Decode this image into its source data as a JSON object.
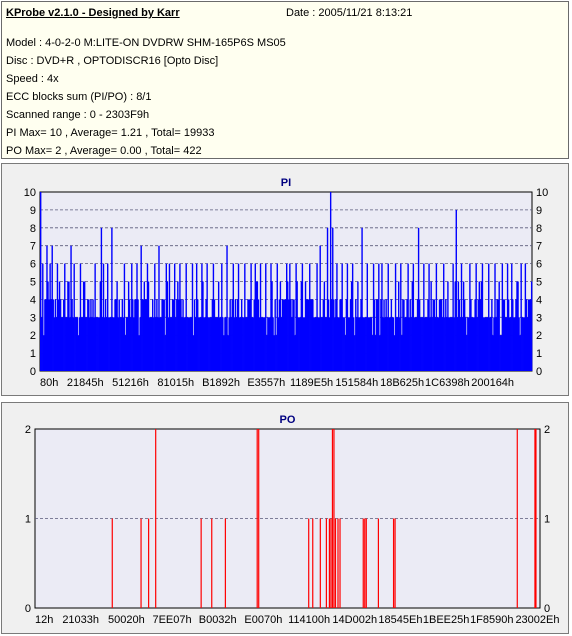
{
  "header": {
    "title": "KProbe v2.1.0 - Designed by Karr",
    "date": "Date : 2005/11/21 8:13:21",
    "model": "Model : 4-0-2-0 M:LITE-ON DVDRW SHM-165P6S MS05",
    "disc": "Disc : DVD+R , OPTODISCR16 [Opto Disc]",
    "speed": "Speed : 4x",
    "ecc": "ECC blocks sum (PI/PO) : 8/1",
    "range": "Scanned range : 0 - 2303F9h",
    "pi_stats": "PI Max= 10 , Average= 1.21 , Total= 19933",
    "po_stats": "PO Max= 2 , Average= 0.00 , Total= 422"
  },
  "colors": {
    "pi_bars": "#0000ff",
    "po_bars": "#ff0000",
    "plot_bg": "#ebebf5",
    "grid": "#5a5a7a",
    "title": "#000080"
  },
  "chart_data": [
    {
      "type": "bar",
      "title": "PI",
      "ylim": [
        0,
        10
      ],
      "yticks": [
        0,
        1,
        2,
        3,
        4,
        5,
        6,
        7,
        8,
        9,
        10
      ],
      "xtick_labels": [
        "80h",
        "21845h",
        "51216h",
        "81015h",
        "B1892h",
        "E3557h",
        "1189E5h",
        "151584h",
        "18B625h",
        "1C6398h",
        "200164h"
      ],
      "grid": "horizontal dashed",
      "bars": 470,
      "baseline_range": [
        2,
        4
      ],
      "peaks": [
        [
          0.0,
          10
        ],
        [
          0.005,
          6
        ],
        [
          0.012,
          7
        ],
        [
          0.02,
          6
        ],
        [
          0.024,
          7
        ],
        [
          0.035,
          6
        ],
        [
          0.048,
          6
        ],
        [
          0.055,
          5
        ],
        [
          0.062,
          7
        ],
        [
          0.068,
          6
        ],
        [
          0.082,
          6
        ],
        [
          0.09,
          5
        ],
        [
          0.11,
          6
        ],
        [
          0.123,
          8
        ],
        [
          0.128,
          6
        ],
        [
          0.136,
          6
        ],
        [
          0.145,
          8
        ],
        [
          0.155,
          5
        ],
        [
          0.17,
          6
        ],
        [
          0.186,
          6
        ],
        [
          0.196,
          6
        ],
        [
          0.205,
          7
        ],
        [
          0.218,
          6
        ],
        [
          0.232,
          6
        ],
        [
          0.24,
          7
        ],
        [
          0.255,
          6
        ],
        [
          0.262,
          6
        ],
        [
          0.272,
          6
        ],
        [
          0.284,
          6
        ],
        [
          0.296,
          6
        ],
        [
          0.309,
          6
        ],
        [
          0.318,
          6
        ],
        [
          0.328,
          6
        ],
        [
          0.34,
          6
        ],
        [
          0.352,
          6
        ],
        [
          0.368,
          6
        ],
        [
          0.38,
          7
        ],
        [
          0.392,
          6
        ],
        [
          0.403,
          6
        ],
        [
          0.416,
          6
        ],
        [
          0.428,
          6
        ],
        [
          0.438,
          6
        ],
        [
          0.448,
          6
        ],
        [
          0.458,
          6
        ],
        [
          0.47,
          6
        ],
        [
          0.482,
          6
        ],
        [
          0.488,
          5
        ],
        [
          0.5,
          6
        ],
        [
          0.508,
          6
        ],
        [
          0.52,
          6
        ],
        [
          0.534,
          6
        ],
        [
          0.548,
          6
        ],
        [
          0.562,
          6
        ],
        [
          0.57,
          7
        ],
        [
          0.585,
          8
        ],
        [
          0.59,
          10
        ],
        [
          0.594,
          8
        ],
        [
          0.604,
          6
        ],
        [
          0.614,
          6
        ],
        [
          0.624,
          6
        ],
        [
          0.636,
          6
        ],
        [
          0.646,
          5
        ],
        [
          0.655,
          8
        ],
        [
          0.666,
          6
        ],
        [
          0.678,
          6
        ],
        [
          0.688,
          6
        ],
        [
          0.696,
          6
        ],
        [
          0.708,
          6
        ],
        [
          0.722,
          6
        ],
        [
          0.734,
          6
        ],
        [
          0.748,
          6
        ],
        [
          0.76,
          6
        ],
        [
          0.77,
          8
        ],
        [
          0.78,
          6
        ],
        [
          0.792,
          6
        ],
        [
          0.806,
          6
        ],
        [
          0.82,
          6
        ],
        [
          0.83,
          5
        ],
        [
          0.841,
          6
        ],
        [
          0.846,
          9
        ],
        [
          0.858,
          6
        ],
        [
          0.874,
          6
        ],
        [
          0.886,
          6
        ],
        [
          0.9,
          6
        ],
        [
          0.912,
          6
        ],
        [
          0.926,
          6
        ],
        [
          0.94,
          6
        ],
        [
          0.95,
          6
        ],
        [
          0.96,
          6
        ],
        [
          0.97,
          5
        ],
        [
          0.978,
          6
        ],
        [
          0.988,
          6
        ]
      ]
    },
    {
      "type": "bar",
      "title": "PO",
      "ylim": [
        0,
        2
      ],
      "yticks": [
        0,
        1,
        2
      ],
      "xtick_labels": [
        "12h",
        "21033h",
        "50020h",
        "7EE07h",
        "B0032h",
        "E0070h",
        "114100h",
        "14D002h",
        "18545Eh",
        "1BEE25h",
        "1F8590h",
        "23002Eh"
      ],
      "grid": "horizontal dashed",
      "spikes": [
        [
          0.153,
          1
        ],
        [
          0.21,
          1
        ],
        [
          0.225,
          1
        ],
        [
          0.239,
          2
        ],
        [
          0.329,
          1
        ],
        [
          0.35,
          1
        ],
        [
          0.377,
          1
        ],
        [
          0.44,
          2
        ],
        [
          0.443,
          2
        ],
        [
          0.542,
          1
        ],
        [
          0.55,
          1
        ],
        [
          0.565,
          1
        ],
        [
          0.577,
          1
        ],
        [
          0.583,
          1
        ],
        [
          0.586,
          1
        ],
        [
          0.589,
          2
        ],
        [
          0.592,
          2
        ],
        [
          0.595,
          1
        ],
        [
          0.6,
          1
        ],
        [
          0.604,
          1
        ],
        [
          0.65,
          1
        ],
        [
          0.653,
          1
        ],
        [
          0.656,
          1
        ],
        [
          0.68,
          1
        ],
        [
          0.71,
          1
        ],
        [
          0.713,
          1
        ],
        [
          0.955,
          2
        ],
        [
          0.99,
          2
        ],
        [
          0.992,
          2
        ]
      ]
    }
  ]
}
